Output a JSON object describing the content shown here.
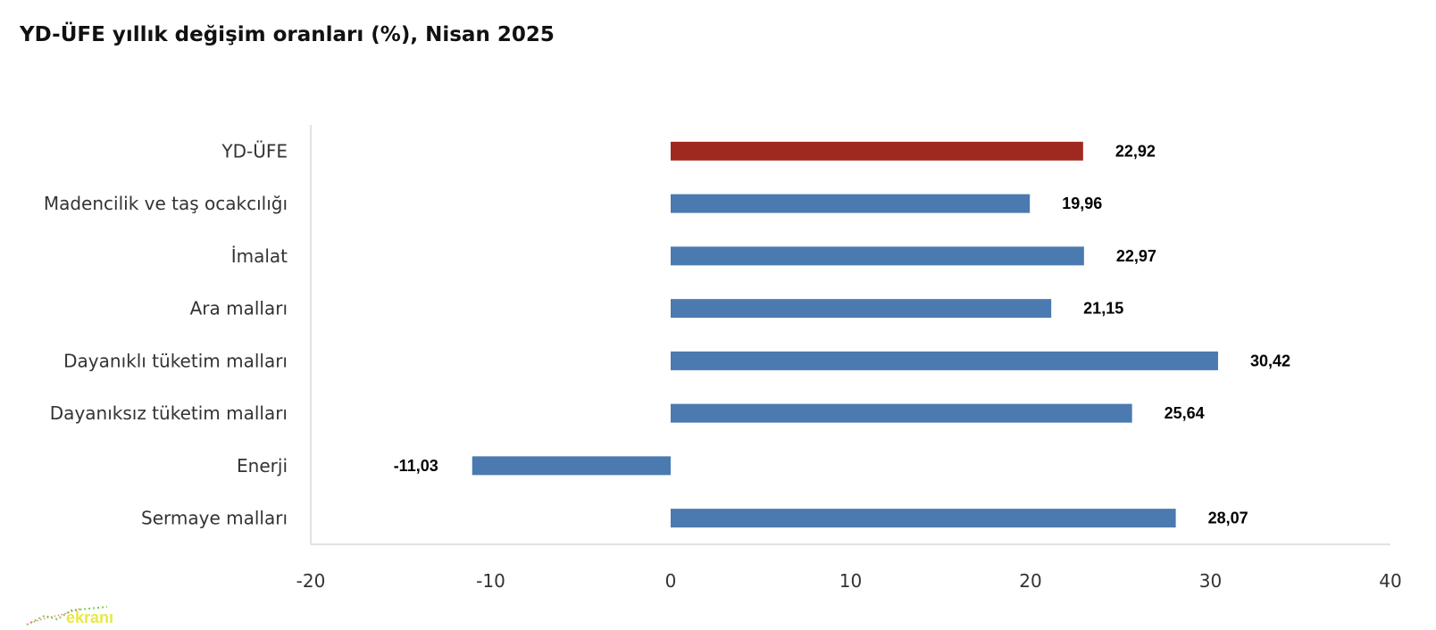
{
  "title": "YD-ÜFE yıllık değişim oranları (%), Nisan 2025",
  "colors": {
    "highlight": "#A0291F",
    "bar": "#4A7AB0",
    "axis": "#D9D9D9"
  },
  "watermark": {
    "text": "ekranı"
  },
  "chart_data": {
    "type": "bar",
    "orientation": "horizontal",
    "categories": [
      "YD-ÜFE",
      "Madencilik ve taş ocakcılığı",
      "İmalat",
      "Ara malları",
      "Dayanıklı tüketim malları",
      "Dayanıksız tüketim malları",
      "Enerji",
      "Sermaye malları"
    ],
    "values": [
      22.92,
      19.96,
      22.97,
      21.15,
      30.42,
      25.64,
      -11.03,
      28.07
    ],
    "value_labels": [
      "22,92",
      "19,96",
      "22,97",
      "21,15",
      "30,42",
      "25,64",
      "-11,03",
      "28,07"
    ],
    "highlight_index": 0,
    "xlim": [
      -20,
      40
    ],
    "xticks": [
      -20,
      -10,
      0,
      10,
      20,
      30,
      40
    ],
    "grid": false,
    "legend": "none"
  }
}
